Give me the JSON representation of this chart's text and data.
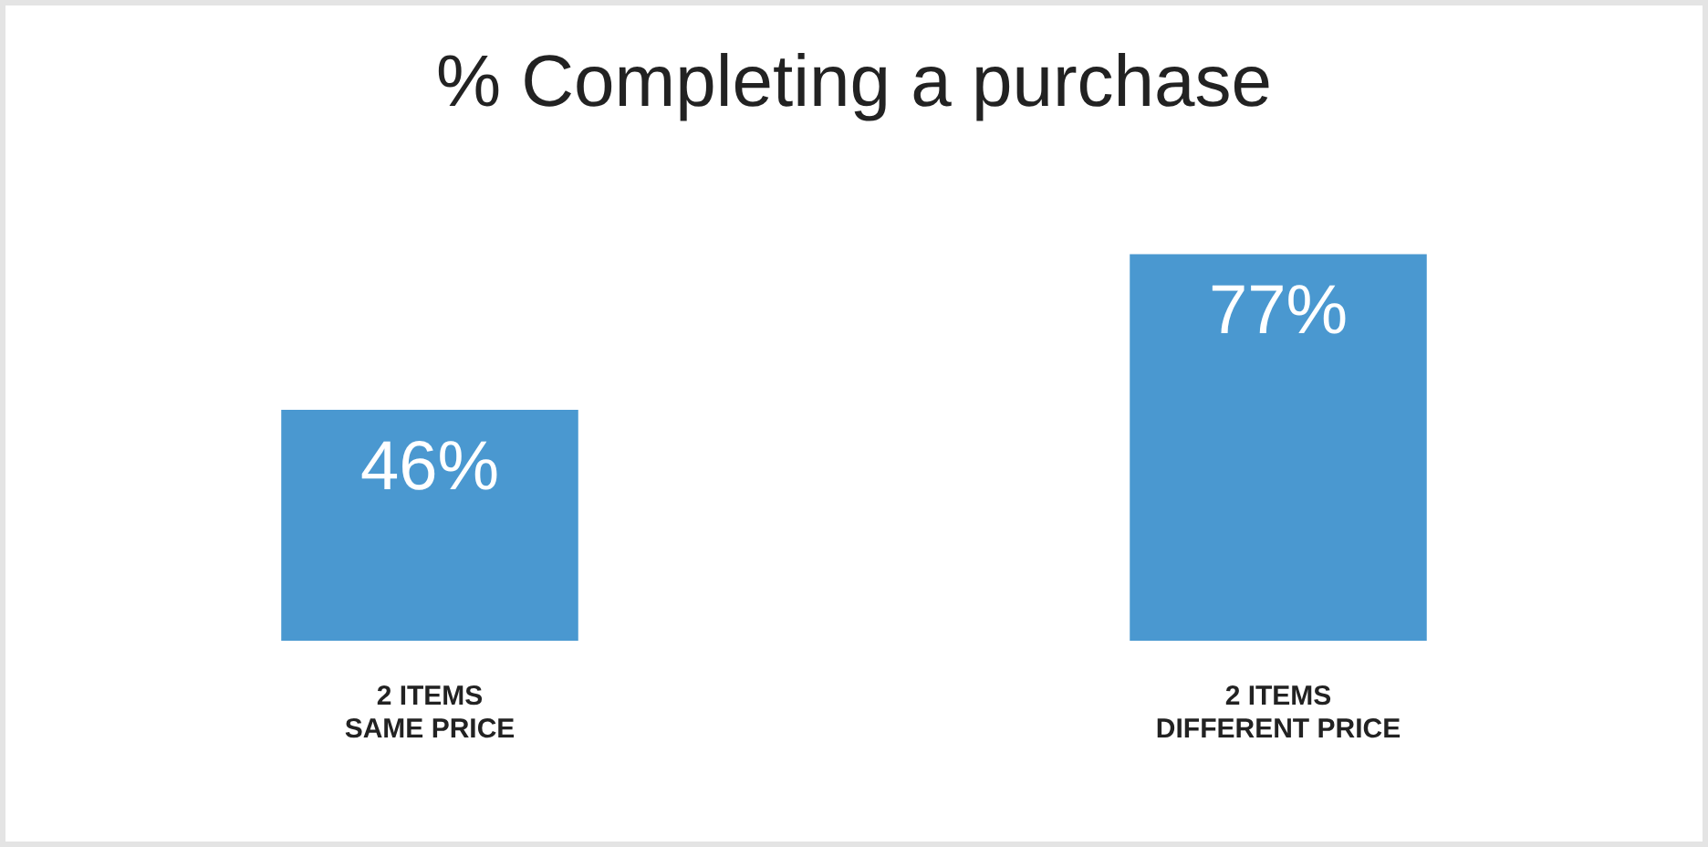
{
  "chart_data": {
    "type": "bar",
    "title": "% Completing a purchase",
    "categories": [
      "2 ITEMS\nSAME PRICE",
      "2 ITEMS\nDIFFERENT PRICE"
    ],
    "values": [
      46,
      77
    ],
    "value_labels": [
      "46%",
      "77%"
    ],
    "color": "#4a98d0",
    "grid": false,
    "legend": false
  }
}
